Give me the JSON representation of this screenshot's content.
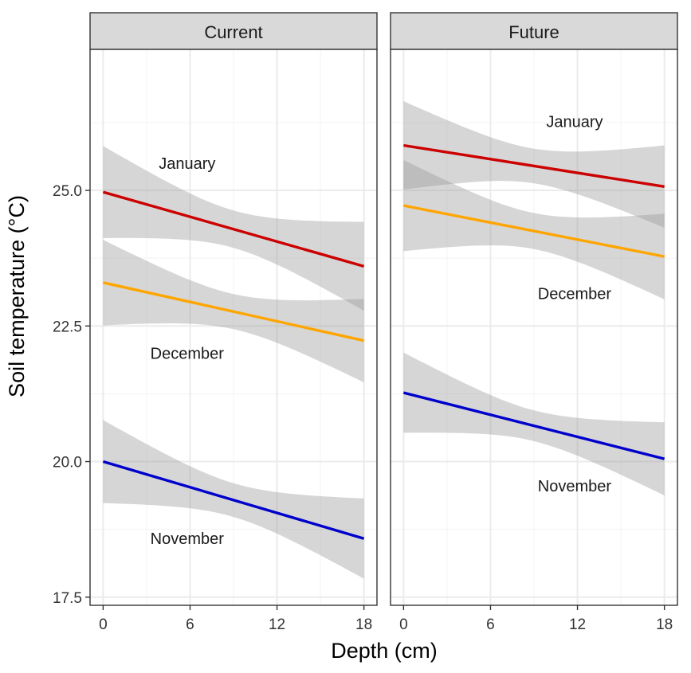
{
  "chart_data": {
    "type": "line",
    "xlabel": "Depth (cm)",
    "ylabel": "Soil temperature (°C)",
    "xlim": [
      -0.9,
      18.9
    ],
    "ylim": [
      17.35,
      27.6
    ],
    "x_ticks": [
      0,
      6,
      12,
      18
    ],
    "x_tick_labels": [
      "0",
      "6",
      "12",
      "18"
    ],
    "y_ticks": [
      17.5,
      20.0,
      22.5,
      25.0
    ],
    "y_tick_labels": [
      "17.5",
      "20.0",
      "22.5",
      "25.0"
    ],
    "grid": true,
    "legend": "none (series labelled directly in panels)",
    "colors": {
      "January": "#cc0000",
      "December": "#ffa500",
      "November": "#0000cc",
      "ribbon": "#999999",
      "strip": "#d9d9d9"
    },
    "panels": [
      {
        "name": "Current",
        "series": [
          {
            "name": "January",
            "x": [
              0,
              18
            ],
            "y": [
              24.97,
              23.6
            ],
            "ci_lower": [
              24.12,
              22.83
            ],
            "ci_upper": [
              25.82,
              24.47
            ],
            "label": "January",
            "label_pos": [
              5.8,
              25.5
            ]
          },
          {
            "name": "December",
            "x": [
              0,
              18
            ],
            "y": [
              23.3,
              22.23
            ],
            "ci_lower": [
              22.52,
              21.48
            ],
            "ci_upper": [
              24.1,
              23.02
            ],
            "label": "December",
            "label_pos": [
              5.8,
              22.0
            ]
          },
          {
            "name": "November",
            "x": [
              0,
              18
            ],
            "y": [
              20.0,
              18.58
            ],
            "ci_lower": [
              19.25,
              17.85
            ],
            "ci_upper": [
              20.78,
              19.33
            ],
            "label": "November",
            "label_pos": [
              5.8,
              18.58
            ]
          }
        ]
      },
      {
        "name": "Future",
        "series": [
          {
            "name": "January",
            "x": [
              0,
              18
            ],
            "y": [
              25.83,
              25.07
            ],
            "ci_lower": [
              25.02,
              24.33
            ],
            "ci_upper": [
              26.65,
              25.85
            ],
            "label": "January",
            "label_pos": [
              11.8,
              26.27
            ]
          },
          {
            "name": "December",
            "x": [
              0,
              18
            ],
            "y": [
              24.72,
              23.78
            ],
            "ci_lower": [
              23.9,
              23.0
            ],
            "ci_upper": [
              25.58,
              24.58
            ],
            "label": "December",
            "label_pos": [
              11.8,
              23.1
            ]
          },
          {
            "name": "November",
            "x": [
              0,
              18
            ],
            "y": [
              21.27,
              20.05
            ],
            "ci_lower": [
              20.52,
              19.4
            ],
            "ci_upper": [
              22.0,
              20.75
            ],
            "label": "November",
            "label_pos": [
              11.8,
              19.55
            ]
          }
        ]
      }
    ]
  }
}
